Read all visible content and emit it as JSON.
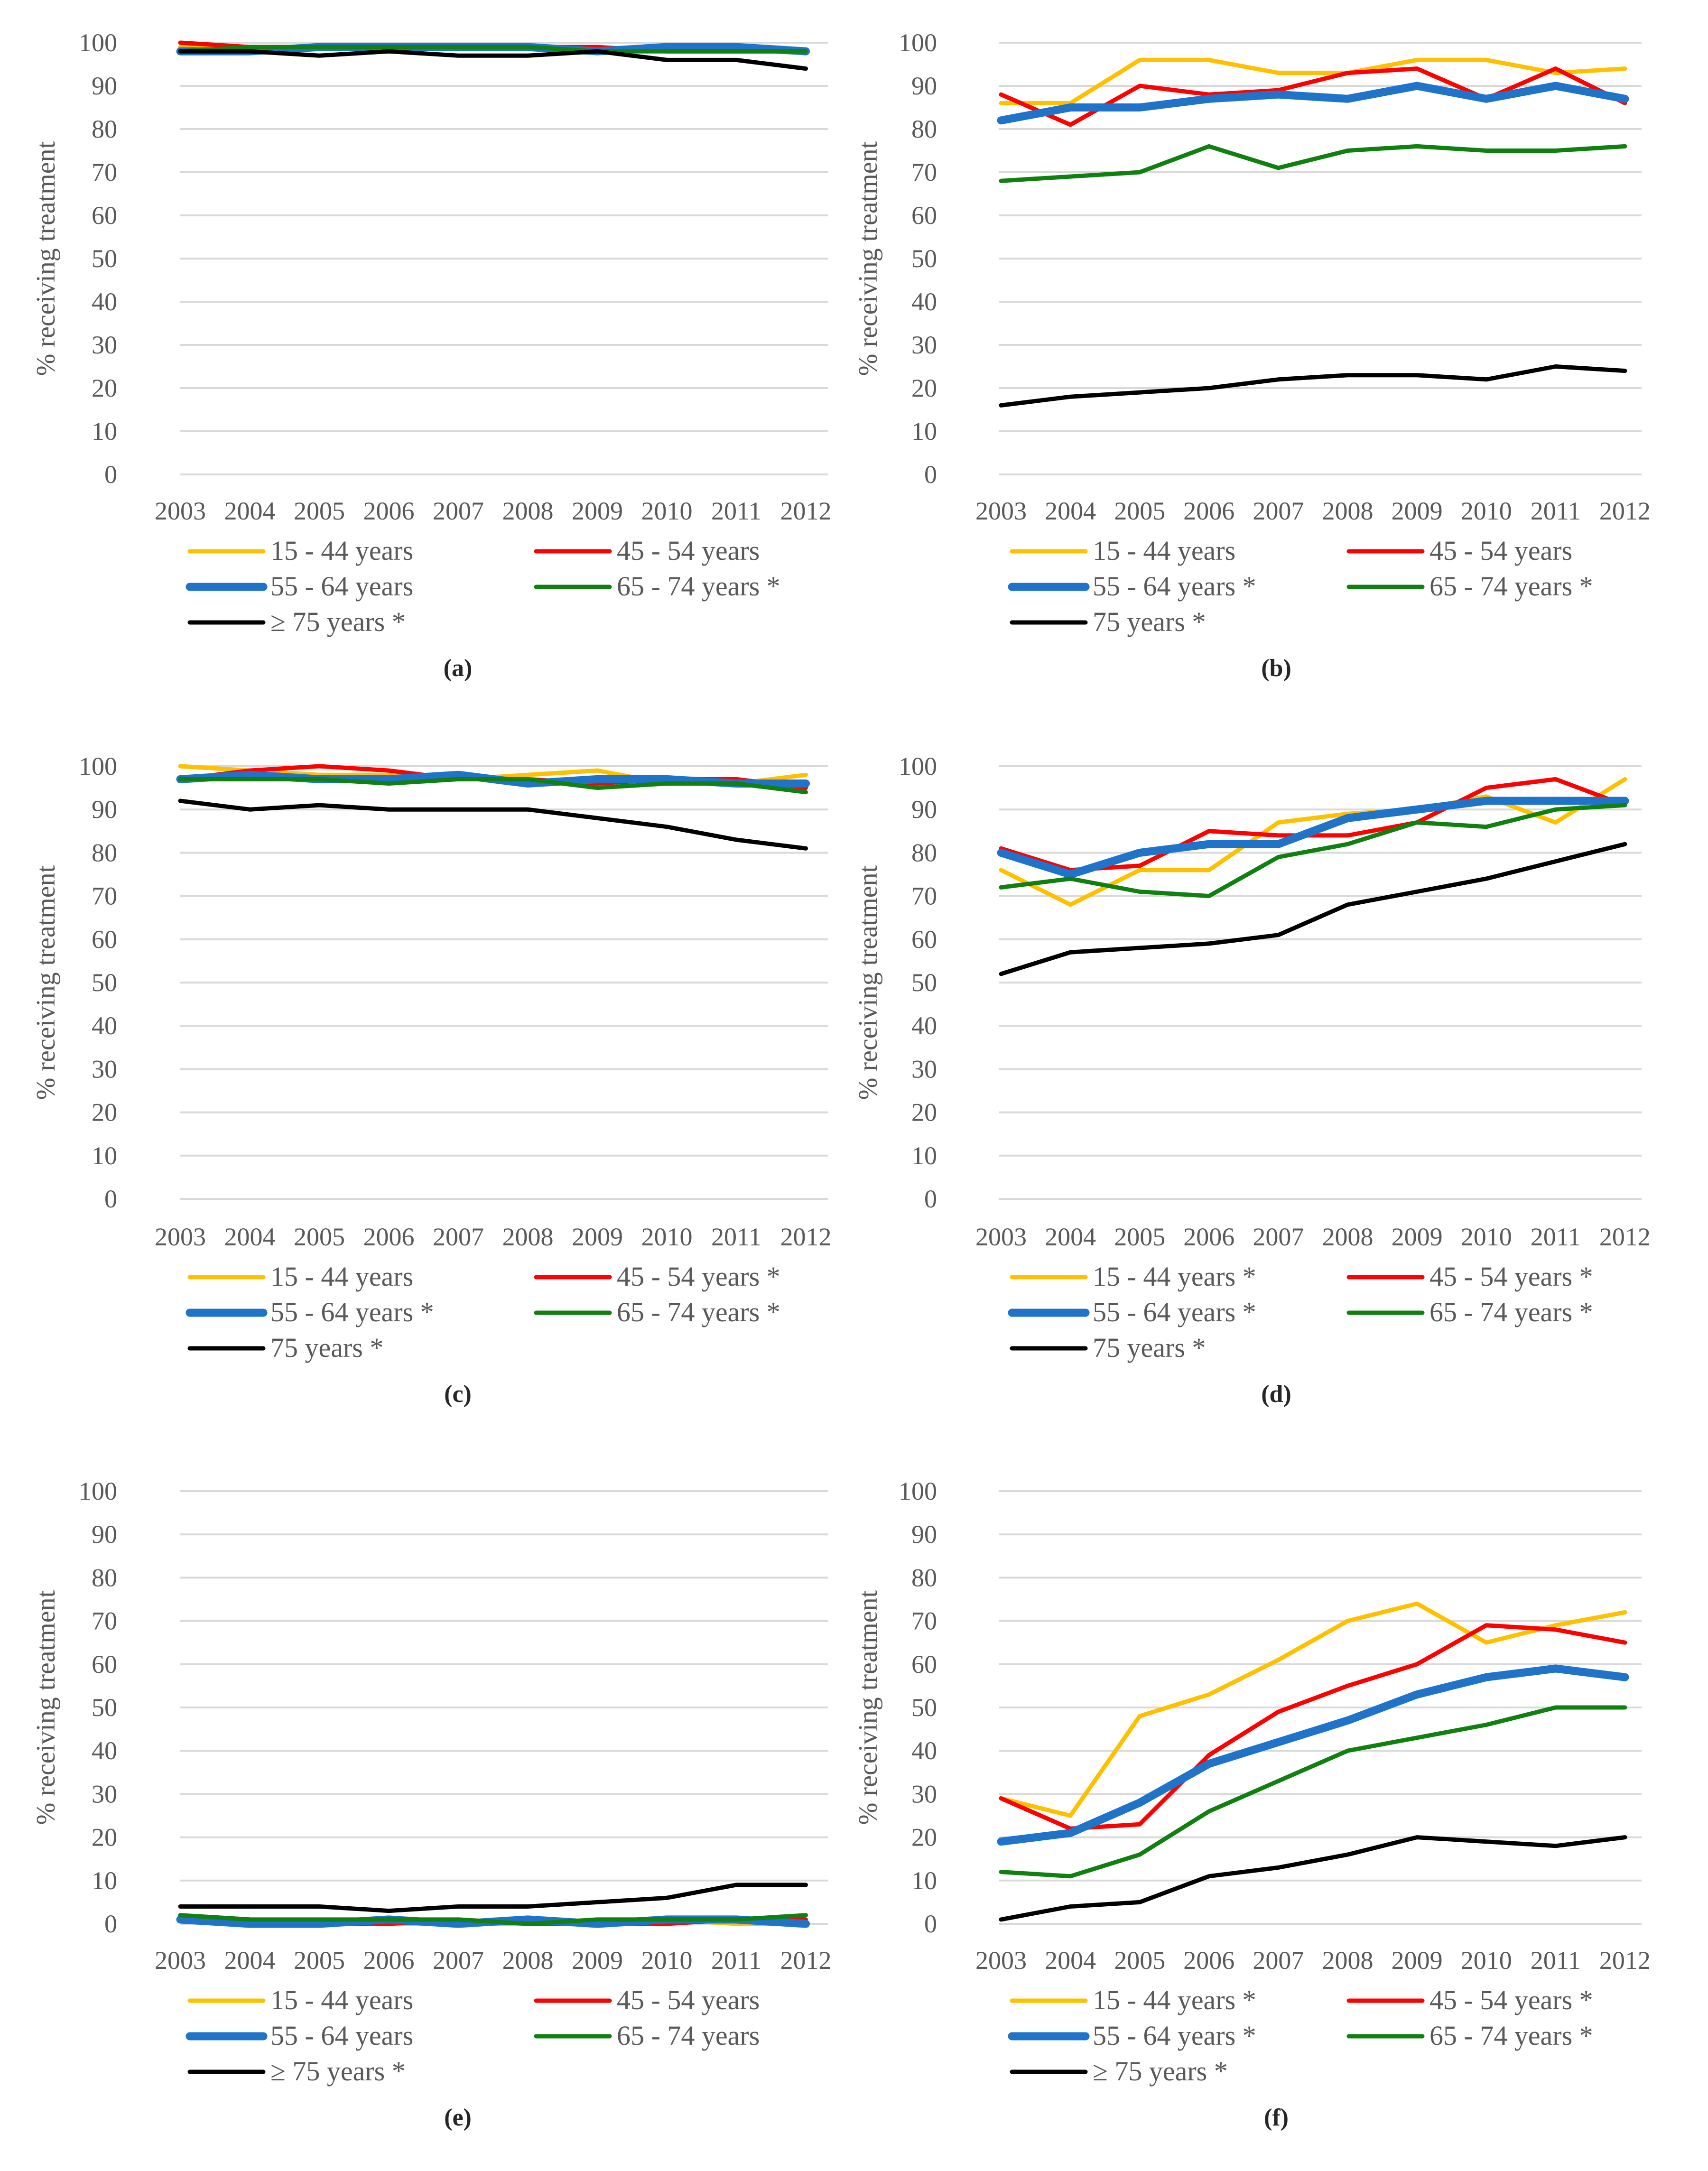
{
  "figure": {
    "x_categories": [
      "2003",
      "2004",
      "2005",
      "2006",
      "2007",
      "2008",
      "2009",
      "2010",
      "2011",
      "2012"
    ],
    "y_ticks": [
      0,
      10,
      20,
      30,
      40,
      50,
      60,
      70,
      80,
      90,
      100
    ],
    "ylabel": "% receiving treatment",
    "colors": {
      "15-44": "#FFC000",
      "45-54": "#FF0000",
      "55-64": "#1F73C8",
      "65-74": "#108010",
      "75+": "#000000"
    }
  },
  "chart_data": [
    {
      "type": "line",
      "panel": "(a)",
      "caption": "(a)",
      "ylabel": "% receiving treatment",
      "ylim": [
        0,
        100
      ],
      "tick_labels": [
        "2003",
        "2004",
        "2005",
        "2006",
        "2007",
        "2008",
        "2009",
        "2010",
        "2011",
        "2012"
      ],
      "categories": [
        "2003",
        "2004",
        "2005",
        "2006",
        "2007",
        "2008",
        "2009",
        "2010",
        "2011",
        "2012"
      ],
      "series": [
        {
          "key": "15-44",
          "name": "15 - 44 years",
          "values": [
            99,
            99,
            99,
            99,
            99,
            99,
            99,
            98,
            98,
            98
          ]
        },
        {
          "key": "45-54",
          "name": "45 - 54 years",
          "values": [
            100,
            99,
            99,
            99,
            99,
            99,
            99,
            98,
            98,
            98
          ]
        },
        {
          "key": "55-64",
          "name": "55 - 64 years",
          "values": [
            98,
            98,
            99,
            99,
            99,
            99,
            98,
            99,
            99,
            98
          ]
        },
        {
          "key": "65-74",
          "name": "65 - 74 years *",
          "values": [
            98,
            99,
            99,
            99,
            99,
            99,
            98,
            98,
            98,
            98
          ]
        },
        {
          "key": "75+",
          "name": "≥ 75 years *",
          "values": [
            98,
            98,
            97,
            98,
            97,
            97,
            98,
            96,
            96,
            94
          ]
        }
      ]
    },
    {
      "type": "line",
      "panel": "(b)",
      "caption": "(b)",
      "ylabel": "% receiving treatment",
      "ylim": [
        0,
        100
      ],
      "tick_labels": [
        "2003",
        "2004",
        "2005",
        "2006",
        "2007",
        "2008",
        "2009",
        "2010",
        "2011",
        "2012"
      ],
      "categories": [
        "2003",
        "2004",
        "2005",
        "2006",
        "2007",
        "2008",
        "2009",
        "2010",
        "2011",
        "2012"
      ],
      "series": [
        {
          "key": "15-44",
          "name": "15 - 44 years",
          "values": [
            86,
            86,
            96,
            96,
            93,
            93,
            96,
            96,
            93,
            94
          ]
        },
        {
          "key": "45-54",
          "name": "45 - 54 years",
          "values": [
            88,
            81,
            90,
            88,
            89,
            93,
            94,
            87,
            94,
            86
          ]
        },
        {
          "key": "55-64",
          "name": "55 - 64 years *",
          "values": [
            82,
            85,
            85,
            87,
            88,
            87,
            90,
            87,
            90,
            87
          ]
        },
        {
          "key": "65-74",
          "name": "65 - 74 years *",
          "values": [
            68,
            69,
            70,
            76,
            71,
            75,
            76,
            75,
            75,
            76
          ]
        },
        {
          "key": "75+",
          "name": "75 years *",
          "values": [
            16,
            18,
            19,
            20,
            22,
            23,
            23,
            22,
            25,
            24
          ]
        }
      ]
    },
    {
      "type": "line",
      "panel": "(c)",
      "caption": "(c)",
      "ylabel": "% receiving treatment",
      "ylim": [
        0,
        100
      ],
      "tick_labels": [
        "2003",
        "2004",
        "2005",
        "2006",
        "2007",
        "2008",
        "2009",
        "2010",
        "2011",
        "2012"
      ],
      "categories": [
        "2003",
        "2004",
        "2005",
        "2006",
        "2007",
        "2008",
        "2009",
        "2010",
        "2011",
        "2012"
      ],
      "series": [
        {
          "key": "15-44",
          "name": "15 - 44 years",
          "values": [
            100,
            99,
            98,
            98,
            97,
            98,
            99,
            96,
            96,
            98
          ]
        },
        {
          "key": "45-54",
          "name": "45 - 54 years *",
          "values": [
            97,
            99,
            100,
            99,
            97,
            97,
            96,
            97,
            97,
            95
          ]
        },
        {
          "key": "55-64",
          "name": "55 - 64 years *",
          "values": [
            97,
            98,
            97,
            97,
            98,
            96,
            97,
            97,
            96,
            96
          ]
        },
        {
          "key": "65-74",
          "name": "65 - 74 years *",
          "values": [
            97,
            97,
            97,
            96,
            97,
            97,
            95,
            96,
            96,
            94
          ]
        },
        {
          "key": "75+",
          "name": "75 years *",
          "values": [
            92,
            90,
            91,
            90,
            90,
            90,
            88,
            86,
            83,
            81
          ]
        }
      ]
    },
    {
      "type": "line",
      "panel": "(d)",
      "caption": "(d)",
      "ylabel": "% receiving treatment",
      "ylim": [
        0,
        100
      ],
      "tick_labels": [
        "2003",
        "2004",
        "2005",
        "2006",
        "2007",
        "2008",
        "2009",
        "2010",
        "2011",
        "2012"
      ],
      "categories": [
        "2003",
        "2004",
        "2005",
        "2006",
        "2007",
        "2008",
        "2009",
        "2010",
        "2011",
        "2012"
      ],
      "series": [
        {
          "key": "15-44",
          "name": "15 - 44 years *",
          "values": [
            76,
            68,
            76,
            76,
            87,
            89,
            90,
            93,
            87,
            97
          ]
        },
        {
          "key": "45-54",
          "name": "45 - 54 years *",
          "values": [
            81,
            76,
            77,
            85,
            84,
            84,
            87,
            95,
            97,
            91
          ]
        },
        {
          "key": "55-64",
          "name": "55 - 64 years *",
          "values": [
            80,
            75,
            80,
            82,
            82,
            88,
            90,
            92,
            92,
            92
          ]
        },
        {
          "key": "65-74",
          "name": "65 - 74 years *",
          "values": [
            72,
            74,
            71,
            70,
            79,
            82,
            87,
            86,
            90,
            91
          ]
        },
        {
          "key": "75+",
          "name": "75 years *",
          "values": [
            52,
            57,
            58,
            59,
            61,
            68,
            71,
            74,
            78,
            82
          ]
        }
      ]
    },
    {
      "type": "line",
      "panel": "(e)",
      "caption": "(e)",
      "ylabel": "% receiving treatment",
      "ylim": [
        0,
        100
      ],
      "tick_labels": [
        "2003",
        "2004",
        "2005",
        "2006",
        "2007",
        "2008",
        "2009",
        "2010",
        "2011",
        "2012"
      ],
      "categories": [
        "2003",
        "2004",
        "2005",
        "2006",
        "2007",
        "2008",
        "2009",
        "2010",
        "2011",
        "2012"
      ],
      "series": [
        {
          "key": "15-44",
          "name": "15 - 44 years",
          "values": [
            1,
            0,
            0,
            0,
            0,
            0,
            1,
            1,
            0,
            0
          ]
        },
        {
          "key": "45-54",
          "name": "45 - 54 years",
          "values": [
            2,
            1,
            0,
            0,
            1,
            0,
            0,
            0,
            1,
            1
          ]
        },
        {
          "key": "55-64",
          "name": "55 - 64 years",
          "values": [
            1,
            0,
            0,
            1,
            0,
            1,
            0,
            1,
            1,
            0
          ]
        },
        {
          "key": "65-74",
          "name": "65 - 74 years",
          "values": [
            2,
            1,
            1,
            1,
            1,
            0,
            1,
            1,
            1,
            2
          ]
        },
        {
          "key": "75+",
          "name": "≥ 75 years *",
          "values": [
            4,
            4,
            4,
            3,
            4,
            4,
            5,
            6,
            9,
            9
          ]
        }
      ]
    },
    {
      "type": "line",
      "panel": "(f)",
      "caption": "(f)",
      "ylabel": "% receiving treatment",
      "ylim": [
        0,
        100
      ],
      "tick_labels": [
        "2003",
        "2004",
        "2005",
        "2006",
        "2007",
        "2008",
        "2009",
        "2010",
        "2011",
        "2012"
      ],
      "categories": [
        "2003",
        "2004",
        "2005",
        "2006",
        "2007",
        "2008",
        "2009",
        "2010",
        "2011",
        "2012"
      ],
      "series": [
        {
          "key": "15-44",
          "name": "15 - 44 years *",
          "values": [
            29,
            25,
            48,
            53,
            61,
            70,
            74,
            65,
            69,
            72
          ]
        },
        {
          "key": "45-54",
          "name": "45 - 54 years *",
          "values": [
            29,
            22,
            23,
            39,
            49,
            55,
            60,
            69,
            68,
            65
          ]
        },
        {
          "key": "55-64",
          "name": "55 - 64 years *",
          "values": [
            19,
            21,
            28,
            37,
            42,
            47,
            53,
            57,
            59,
            57
          ]
        },
        {
          "key": "65-74",
          "name": "65 - 74 years *",
          "values": [
            12,
            11,
            16,
            26,
            33,
            40,
            43,
            46,
            50,
            50
          ]
        },
        {
          "key": "75+",
          "name": "≥ 75 years *",
          "values": [
            1,
            4,
            5,
            11,
            13,
            16,
            20,
            19,
            18,
            20
          ]
        }
      ]
    }
  ]
}
